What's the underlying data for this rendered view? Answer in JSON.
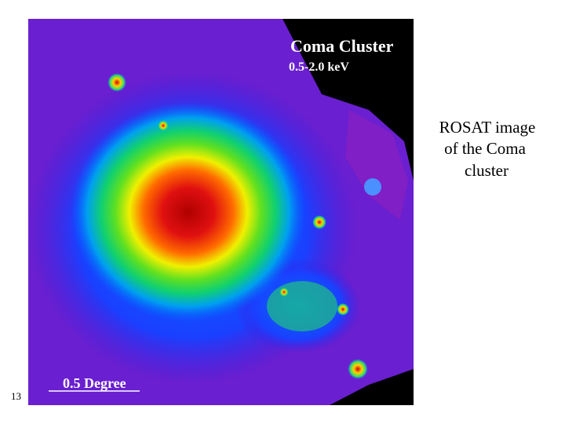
{
  "slide": {
    "number": "13",
    "caption_lines": [
      "ROSAT image",
      "of the Coma",
      "cluster"
    ],
    "image": {
      "title": "Coma Cluster",
      "band": "0.5-2.0 keV",
      "scale_label": "0.5 Degree"
    }
  }
}
